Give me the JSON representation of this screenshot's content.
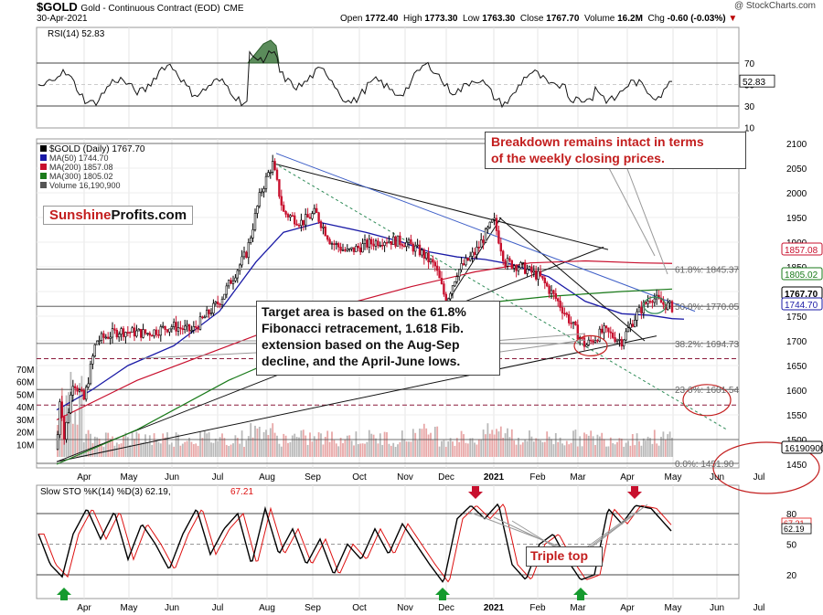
{
  "header": {
    "symbol": "$GOLD",
    "description": "Gold - Continuous Contract (EOD)",
    "exchange": "CME",
    "date": "30-Apr-2021",
    "open_label": "Open",
    "open": "1772.40",
    "high_label": "High",
    "high": "1773.30",
    "low_label": "Low",
    "low": "1763.30",
    "close_label": "Close",
    "close": "1767.70",
    "volume_label": "Volume",
    "volume": "16.2M",
    "chg_label": "Chg",
    "chg": "-0.60 (-0.03%)",
    "credit": "@ StockCharts.com"
  },
  "rsi": {
    "label": "RSI(14) 52.83",
    "value_tag": "52.83",
    "ticks": [
      "70",
      "50",
      "30",
      "10"
    ]
  },
  "price_legend": [
    {
      "text": "$GOLD (Daily) 1767.70",
      "color": "#000000"
    },
    {
      "text": "MA(50) 1744.70",
      "color": "#1a1aa6"
    },
    {
      "text": "MA(200) 1857.08",
      "color": "#c8102e"
    },
    {
      "text": "MA(300) 1805.02",
      "color": "#1a7a1a"
    },
    {
      "text": "Volume 16,190,900",
      "color": "#555555"
    }
  ],
  "logo": {
    "part1": "Sunshine",
    "part2": "Profits.com"
  },
  "fib_labels": [
    "61.8%: 1845.37",
    "50.0%: 1770.05",
    "38.2%: 1694.73",
    "23.6%: 1601.54",
    "0.0%: 1451.90"
  ],
  "price_ticks": [
    "2100",
    "2050",
    "2000",
    "1950",
    "1900",
    "1850",
    "1800",
    "1750",
    "1700",
    "1650",
    "1600",
    "1550",
    "1500",
    "1450"
  ],
  "price_tags": [
    {
      "text": "1857.08",
      "color": "#c8102e",
      "fill": "#ffffff"
    },
    {
      "text": "1805.02",
      "color": "#1a7a1a",
      "fill": "#ffffff"
    },
    {
      "text": "1767.70",
      "color": "#000000",
      "fill": "#ffffff"
    },
    {
      "text": "1744.70",
      "color": "#1a1aa6",
      "fill": "#ffffff"
    },
    {
      "text": "16190900",
      "color": "#000000",
      "fill": "#ffffff"
    }
  ],
  "volume_ticks": [
    "70M",
    "60M",
    "50M",
    "40M",
    "30M",
    "20M",
    "10M"
  ],
  "x_months": [
    "Apr",
    "May",
    "Jun",
    "Jul",
    "Aug",
    "Sep",
    "Oct",
    "Nov",
    "Dec",
    "2021",
    "Feb",
    "Mar",
    "Apr",
    "May",
    "Jun",
    "Jul"
  ],
  "annotations": {
    "breakdown": [
      "Breakdown remains intact in terms",
      "of the weekly closing prices."
    ],
    "target": [
      "Target area is based on the 61.8%",
      "Fibonacci retracement, 1.618 Fib.",
      "extension based on the Aug-Sep",
      "decline, and the April-June lows."
    ],
    "triple_top": "Triple top"
  },
  "sto": {
    "label_prefix": "Slow STO %K(14) %D(3) 62.19,",
    "label_red": "67.21",
    "tags": [
      "67.21",
      "62.19"
    ],
    "ticks": [
      "80",
      "50",
      "20"
    ]
  },
  "colors": {
    "up_candle": "#000000",
    "down_candle": "#c8102e",
    "ma50": "#1a1aa6",
    "ma200": "#c8102e",
    "ma300": "#1a7a1a",
    "annotation": "#c31e1e"
  },
  "chart_data": {
    "type": "line",
    "title": "$GOLD Gold - Continuous Contract (EOD) CME",
    "series": [
      {
        "name": "$GOLD (Daily)",
        "x": [
          "Apr",
          "May",
          "Jun",
          "Jul",
          "Aug",
          "Sep",
          "Oct",
          "Nov",
          "Dec",
          "2021",
          "Feb",
          "Mar",
          "Apr",
          "May"
        ],
        "values": [
          1590,
          1700,
          1720,
          1780,
          2060,
          1950,
          1890,
          1880,
          1810,
          1900,
          1840,
          1715,
          1735,
          1767.7
        ]
      },
      {
        "name": "MA(50)",
        "last": 1744.7
      },
      {
        "name": "MA(200)",
        "last": 1857.08
      },
      {
        "name": "MA(300)",
        "last": 1805.02
      },
      {
        "name": "Volume",
        "last": 16190900
      }
    ],
    "fibonacci_levels": [
      {
        "label": "61.8%",
        "value": 1845.37
      },
      {
        "label": "50.0%",
        "value": 1770.05
      },
      {
        "label": "38.2%",
        "value": 1694.73
      },
      {
        "label": "23.6%",
        "value": 1601.54
      },
      {
        "label": "0.0%",
        "value": 1451.9
      }
    ],
    "rsi_last": 52.83,
    "sto_k_last": 62.19,
    "sto_d_last": 67.21,
    "ylim": [
      1440,
      2110
    ],
    "grid": true
  }
}
